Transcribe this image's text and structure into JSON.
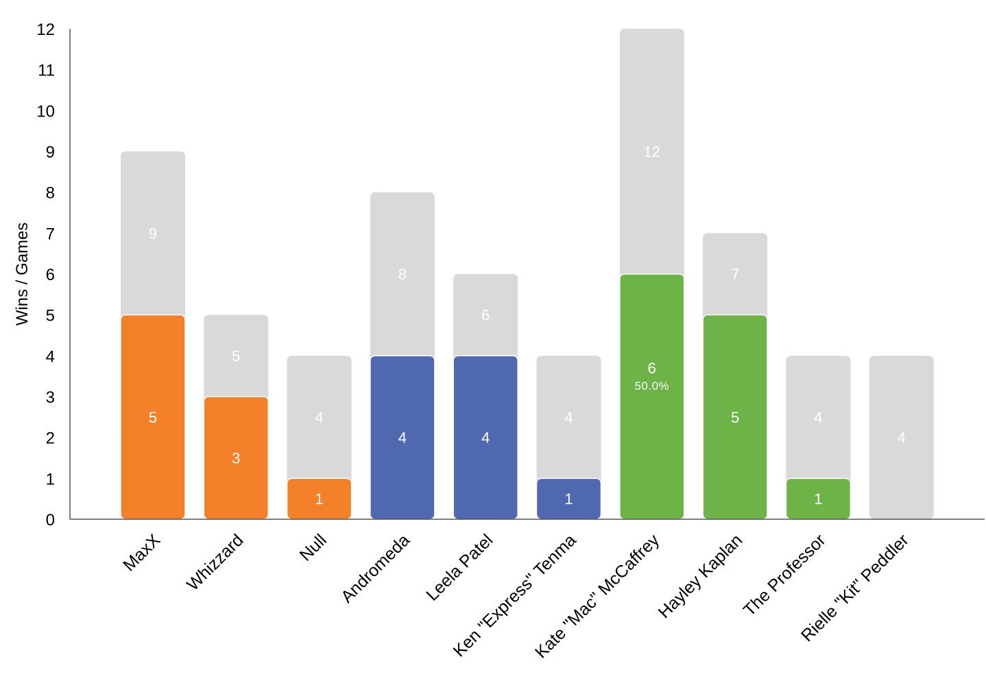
{
  "chart_data": {
    "type": "bar",
    "title": "",
    "xlabel": "",
    "ylabel": "Wins / Games",
    "ylim": [
      0,
      12
    ],
    "yticks": [
      0,
      1,
      2,
      3,
      4,
      5,
      6,
      7,
      8,
      9,
      10,
      11,
      12
    ],
    "grid": false,
    "legend": "none",
    "categories": [
      "MaxX",
      "Whizzard",
      "Null",
      "Andromeda",
      "Leela Patel",
      "Ken \"Express\" Tenma",
      "Kate \"Mac\" McCaffrey",
      "Hayley Kaplan",
      "The Professor",
      "Rielle \"Kit\" Peddler"
    ],
    "series": [
      {
        "values": [
          9,
          5,
          4,
          8,
          6,
          4,
          12,
          7,
          4,
          4
        ]
      },
      {
        "values": [
          5,
          3,
          1,
          4,
          4,
          1,
          6,
          5,
          1,
          0
        ]
      }
    ],
    "bar_colors": [
      "#f48029",
      "#f48029",
      "#f48029",
      "#5068b0",
      "#5068b0",
      "#5068b0",
      "#6db347",
      "#6db347",
      "#6db347",
      "#f48029"
    ],
    "games_color": "#d9d9d9",
    "annotations": [
      {
        "category": "Kate \"Mac\" McCaffrey",
        "text": "50.0%"
      }
    ]
  }
}
